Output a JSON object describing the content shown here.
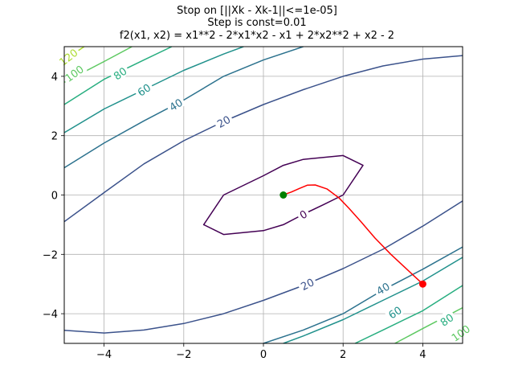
{
  "chart_data": {
    "type": "line",
    "title_lines": [
      "Stop on [||Xk - Xk-1||<=1e-05]",
      "Step is const=0.01",
      "f2(x1, x2) = x1**2 - 2*x1*x2 - x1 + 2*x2**2 + x2 - 2"
    ],
    "xlim": [
      -5,
      5
    ],
    "ylim": [
      -5,
      5
    ],
    "xticks": [
      -4,
      -2,
      0,
      2,
      4
    ],
    "yticks": [
      -4,
      -2,
      0,
      2,
      4
    ],
    "xtick_labels": [
      "−4",
      "−2",
      "0",
      "2",
      "4"
    ],
    "ytick_labels": [
      "−4",
      "−2",
      "0",
      "2",
      "4"
    ],
    "grid": true,
    "contours": [
      {
        "level": 0,
        "label": "0",
        "color": "#440154",
        "closed": true,
        "points": [
          [
            -1,
            0
          ],
          [
            0,
            0.65
          ],
          [
            0.5,
            1
          ],
          [
            1,
            1.2
          ],
          [
            2,
            1.33
          ],
          [
            2.5,
            1
          ],
          [
            2,
            0
          ],
          [
            1.5,
            -0.33
          ],
          [
            1,
            -0.65
          ],
          [
            0.5,
            -1
          ],
          [
            0,
            -1.2
          ],
          [
            -1,
            -1.33
          ],
          [
            -1.5,
            -1
          ]
        ]
      },
      {
        "level": 20,
        "label": "20",
        "color": "#3b528b",
        "closed": false,
        "points": [
          [
            -5,
            -0.9
          ],
          [
            -4,
            0.08
          ],
          [
            -3,
            1.05
          ],
          [
            -2,
            1.83
          ],
          [
            -1,
            2.48
          ],
          [
            0,
            3.05
          ],
          [
            1,
            3.55
          ],
          [
            2,
            4
          ],
          [
            3,
            4.35
          ],
          [
            4,
            4.58
          ],
          [
            5,
            4.7
          ]
        ]
      },
      {
        "level": 20,
        "label": "20",
        "color": "#3b528b",
        "closed": false,
        "points": [
          [
            -5,
            -4.56
          ],
          [
            -4,
            -4.65
          ],
          [
            -3,
            -4.55
          ],
          [
            -2,
            -4.33
          ],
          [
            -1,
            -4
          ],
          [
            0,
            -3.55
          ],
          [
            1,
            -3.05
          ],
          [
            2,
            -2.48
          ],
          [
            3,
            -1.83
          ],
          [
            4,
            -1.05
          ],
          [
            5,
            -0.2
          ]
        ]
      },
      {
        "level": 40,
        "label": "40",
        "color": "#2c728e",
        "closed": false,
        "points": [
          [
            -5,
            0.92
          ],
          [
            -4,
            1.75
          ],
          [
            -3,
            2.5
          ],
          [
            -2,
            3.2
          ],
          [
            -1,
            4
          ],
          [
            0,
            4.55
          ],
          [
            1,
            5
          ]
        ]
      },
      {
        "level": 40,
        "label": "40",
        "color": "#2c728e",
        "closed": false,
        "points": [
          [
            0,
            -5
          ],
          [
            1,
            -4.55
          ],
          [
            2,
            -4
          ],
          [
            3,
            -3.2
          ],
          [
            4,
            -2.5
          ],
          [
            5,
            -1.75
          ]
        ]
      },
      {
        "level": 60,
        "label": "60",
        "color": "#21918c",
        "closed": false,
        "points": [
          [
            -5,
            2.1
          ],
          [
            -4,
            2.9
          ],
          [
            -3,
            3.55
          ],
          [
            -2,
            4.2
          ],
          [
            -1,
            4.75
          ],
          [
            -0.5,
            5
          ]
        ]
      },
      {
        "level": 60,
        "label": "60",
        "color": "#21918c",
        "closed": false,
        "points": [
          [
            0.5,
            -5
          ],
          [
            1,
            -4.75
          ],
          [
            2,
            -4.2
          ],
          [
            3,
            -3.55
          ],
          [
            4,
            -2.9
          ],
          [
            5,
            -2.1
          ]
        ]
      },
      {
        "level": 80,
        "label": "80",
        "color": "#28ae80",
        "closed": false,
        "points": [
          [
            -5,
            3.05
          ],
          [
            -4,
            3.9
          ],
          [
            -3,
            4.55
          ],
          [
            -2.3,
            5
          ]
        ]
      },
      {
        "level": 80,
        "label": "80",
        "color": "#28ae80",
        "closed": false,
        "points": [
          [
            2.3,
            -5
          ],
          [
            3,
            -4.55
          ],
          [
            4,
            -3.9
          ],
          [
            5,
            -3.05
          ]
        ]
      },
      {
        "level": 100,
        "label": "100",
        "color": "#5ec962",
        "closed": false,
        "points": [
          [
            -5,
            3.8
          ],
          [
            -4,
            4.5
          ],
          [
            -3.3,
            5
          ]
        ]
      },
      {
        "level": 100,
        "label": "100",
        "color": "#5ec962",
        "closed": false,
        "points": [
          [
            3.3,
            -5
          ],
          [
            4,
            -4.5
          ],
          [
            5,
            -3.8
          ]
        ]
      },
      {
        "level": 120,
        "label": "120",
        "color": "#addc30",
        "closed": false,
        "points": [
          [
            -5,
            4.55
          ],
          [
            -4.5,
            5
          ]
        ]
      }
    ],
    "contour_label_positions": [
      {
        "label": "0",
        "x": 1.0,
        "y": -0.65,
        "angle": -30
      },
      {
        "label": "20",
        "x": -1.0,
        "y": 2.48,
        "angle": -29
      },
      {
        "label": "20",
        "x": 1.1,
        "y": -3.0,
        "angle": -27
      },
      {
        "label": "40",
        "x": -2.2,
        "y": 3.05,
        "angle": -32
      },
      {
        "label": "40",
        "x": 3.0,
        "y": -3.15,
        "angle": -31
      },
      {
        "label": "60",
        "x": -3.0,
        "y": 3.55,
        "angle": -33
      },
      {
        "label": "60",
        "x": 3.3,
        "y": -3.95,
        "angle": -33
      },
      {
        "label": "80",
        "x": -3.6,
        "y": 4.1,
        "angle": -35
      },
      {
        "label": "80",
        "x": 4.6,
        "y": -4.2,
        "angle": -35
      },
      {
        "label": "100",
        "x": -4.75,
        "y": 4.1,
        "angle": -36
      },
      {
        "label": "100",
        "x": 4.95,
        "y": -4.65,
        "angle": -36
      },
      {
        "label": "120",
        "x": -4.9,
        "y": 4.65,
        "angle": -38
      }
    ],
    "path": {
      "color": "#ff0000",
      "points": [
        [
          4,
          -3
        ],
        [
          3.6,
          -2.5
        ],
        [
          3.2,
          -2
        ],
        [
          2.8,
          -1.45
        ],
        [
          2.45,
          -0.9
        ],
        [
          2.15,
          -0.45
        ],
        [
          1.9,
          -0.1
        ],
        [
          1.6,
          0.2
        ],
        [
          1.3,
          0.34
        ],
        [
          1.1,
          0.33
        ],
        [
          0.9,
          0.22
        ],
        [
          0.7,
          0.1
        ],
        [
          0.55,
          0.03
        ],
        [
          0.5,
          0
        ]
      ]
    },
    "start_point": {
      "x": 4,
      "y": -3,
      "color": "#ff0000"
    },
    "end_point": {
      "x": 0.5,
      "y": 0,
      "color": "#008000"
    }
  }
}
